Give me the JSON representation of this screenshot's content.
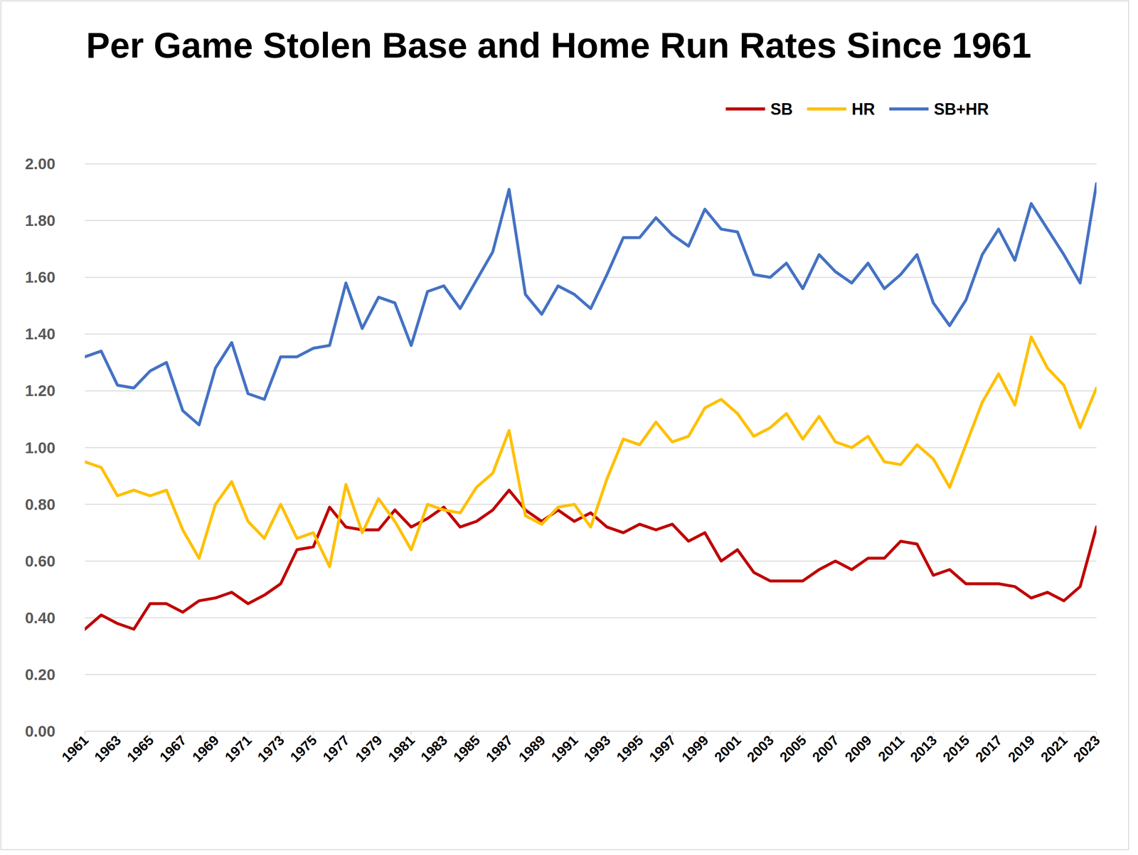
{
  "chart_data": {
    "type": "line",
    "title": "Per Game Stolen Base and Home Run Rates Since 1961",
    "x": [
      1961,
      1962,
      1963,
      1964,
      1965,
      1966,
      1967,
      1968,
      1969,
      1970,
      1971,
      1972,
      1973,
      1974,
      1975,
      1976,
      1977,
      1978,
      1979,
      1980,
      1981,
      1982,
      1983,
      1984,
      1985,
      1986,
      1987,
      1988,
      1989,
      1990,
      1991,
      1992,
      1993,
      1994,
      1995,
      1996,
      1997,
      1998,
      1999,
      2000,
      2001,
      2002,
      2003,
      2004,
      2005,
      2006,
      2007,
      2008,
      2009,
      2010,
      2011,
      2012,
      2013,
      2014,
      2015,
      2016,
      2017,
      2018,
      2019,
      2020,
      2021,
      2022,
      2023
    ],
    "series": [
      {
        "name": "SB",
        "color": "#c00000",
        "values": [
          0.36,
          0.41,
          0.38,
          0.36,
          0.45,
          0.45,
          0.42,
          0.46,
          0.47,
          0.49,
          0.45,
          0.48,
          0.52,
          0.64,
          0.65,
          0.79,
          0.72,
          0.71,
          0.71,
          0.78,
          0.72,
          0.75,
          0.79,
          0.72,
          0.74,
          0.78,
          0.85,
          0.78,
          0.74,
          0.78,
          0.74,
          0.77,
          0.72,
          0.7,
          0.73,
          0.71,
          0.73,
          0.67,
          0.7,
          0.6,
          0.64,
          0.56,
          0.53,
          0.53,
          0.53,
          0.57,
          0.6,
          0.57,
          0.61,
          0.61,
          0.67,
          0.66,
          0.55,
          0.57,
          0.52,
          0.52,
          0.52,
          0.51,
          0.47,
          0.49,
          0.46,
          0.51,
          0.72
        ]
      },
      {
        "name": "HR",
        "color": "#ffc000",
        "values": [
          0.95,
          0.93,
          0.83,
          0.85,
          0.83,
          0.85,
          0.71,
          0.61,
          0.8,
          0.88,
          0.74,
          0.68,
          0.8,
          0.68,
          0.7,
          0.58,
          0.87,
          0.7,
          0.82,
          0.74,
          0.64,
          0.8,
          0.78,
          0.77,
          0.86,
          0.91,
          1.06,
          0.76,
          0.73,
          0.79,
          0.8,
          0.72,
          0.89,
          1.03,
          1.01,
          1.09,
          1.02,
          1.04,
          1.14,
          1.17,
          1.12,
          1.04,
          1.07,
          1.12,
          1.03,
          1.11,
          1.02,
          1.0,
          1.04,
          0.95,
          0.94,
          1.01,
          0.96,
          0.86,
          1.01,
          1.16,
          1.26,
          1.15,
          1.39,
          1.28,
          1.22,
          1.07,
          1.21
        ]
      },
      {
        "name": "SB+HR",
        "color": "#4472c4",
        "values": [
          1.32,
          1.34,
          1.22,
          1.21,
          1.27,
          1.3,
          1.13,
          1.08,
          1.28,
          1.37,
          1.19,
          1.17,
          1.32,
          1.32,
          1.35,
          1.36,
          1.58,
          1.42,
          1.53,
          1.51,
          1.36,
          1.55,
          1.57,
          1.49,
          1.59,
          1.69,
          1.91,
          1.54,
          1.47,
          1.57,
          1.54,
          1.49,
          1.61,
          1.74,
          1.74,
          1.81,
          1.75,
          1.71,
          1.84,
          1.77,
          1.76,
          1.61,
          1.6,
          1.65,
          1.56,
          1.68,
          1.62,
          1.58,
          1.65,
          1.56,
          1.61,
          1.68,
          1.51,
          1.43,
          1.52,
          1.68,
          1.77,
          1.66,
          1.86,
          1.77,
          1.68,
          1.58,
          1.93
        ]
      }
    ],
    "xlim": [
      1961,
      2023
    ],
    "xticks": [
      1961,
      1963,
      1965,
      1967,
      1969,
      1971,
      1973,
      1975,
      1977,
      1979,
      1981,
      1983,
      1985,
      1987,
      1989,
      1991,
      1993,
      1995,
      1997,
      1999,
      2001,
      2003,
      2005,
      2007,
      2009,
      2011,
      2013,
      2015,
      2017,
      2019,
      2021,
      2023
    ],
    "ylim": [
      0,
      2
    ],
    "yticks": [
      {
        "value": 0,
        "label": "0.00"
      },
      {
        "value": 0.2,
        "label": "0.20"
      },
      {
        "value": 0.4,
        "label": "0.40"
      },
      {
        "value": 0.6,
        "label": "0.60"
      },
      {
        "value": 0.8,
        "label": "0.80"
      },
      {
        "value": 1,
        "label": "1.00"
      },
      {
        "value": 1.2,
        "label": "1.20"
      },
      {
        "value": 1.4,
        "label": "1.40"
      },
      {
        "value": 1.6,
        "label": "1.60"
      },
      {
        "value": 1.8,
        "label": "1.80"
      },
      {
        "value": 2,
        "label": "2.00"
      }
    ],
    "grid": true,
    "legend": "top"
  }
}
